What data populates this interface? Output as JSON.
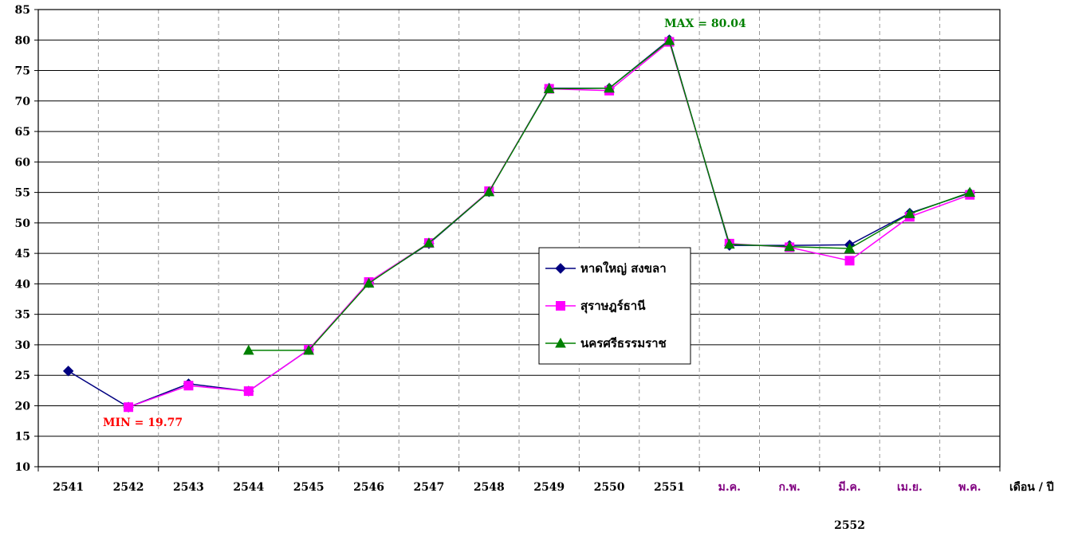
{
  "chart_data": {
    "type": "line",
    "categories": [
      "2541",
      "2542",
      "2543",
      "2544",
      "2545",
      "2546",
      "2547",
      "2548",
      "2549",
      "2550",
      "2551",
      "ม.ค.",
      "ก.พ.",
      "มี.ค.",
      "เม.ย.",
      "พ.ค."
    ],
    "month_categories": [
      "ม.ค.",
      "ก.พ.",
      "มี.ค.",
      "เม.ย.",
      "พ.ค."
    ],
    "xlabel": "เดือน / ปี",
    "group_label": "2552",
    "ylabel": "",
    "ylim": [
      10,
      85
    ],
    "yticks": [
      10,
      15,
      20,
      25,
      30,
      35,
      40,
      45,
      50,
      55,
      60,
      65,
      70,
      75,
      80,
      85
    ],
    "grid": {
      "horizontal": true,
      "vertical_dashed": true
    },
    "legend_position": "center-right",
    "series": [
      {
        "name": "หาดใหญ่ สงขลา",
        "color": "#000080",
        "marker": "diamond",
        "values": [
          25.7,
          19.77,
          23.6,
          22.4,
          29.2,
          40.2,
          46.6,
          55.1,
          72.1,
          72.1,
          80.04,
          46.3,
          46.3,
          46.4,
          51.6,
          54.9
        ]
      },
      {
        "name": "สุราษฎร์ธานี",
        "color": "#ff00ff",
        "marker": "square",
        "values": [
          null,
          19.77,
          23.3,
          22.4,
          29.2,
          40.3,
          46.7,
          55.2,
          72.0,
          71.7,
          79.7,
          46.6,
          46.0,
          43.8,
          51.0,
          54.6
        ]
      },
      {
        "name": "นครศรีธรรมราช",
        "color": "#008000",
        "marker": "triangle",
        "values": [
          null,
          null,
          null,
          29.1,
          29.1,
          40.1,
          46.7,
          55.1,
          72.0,
          72.1,
          79.9,
          46.5,
          46.1,
          45.8,
          51.5,
          55.0
        ]
      }
    ],
    "annotations": [
      {
        "text": "MIN = 19.77",
        "color": "#ff0000",
        "category_index": 1,
        "value": 19.77
      },
      {
        "text": "MAX = 80.04",
        "color": "#008000",
        "category_index": 10,
        "value": 80.04
      }
    ],
    "colors": {
      "year_tick": "#000000",
      "month_tick": "#800080",
      "grid": "#000000",
      "vgrid": "#999999"
    }
  }
}
